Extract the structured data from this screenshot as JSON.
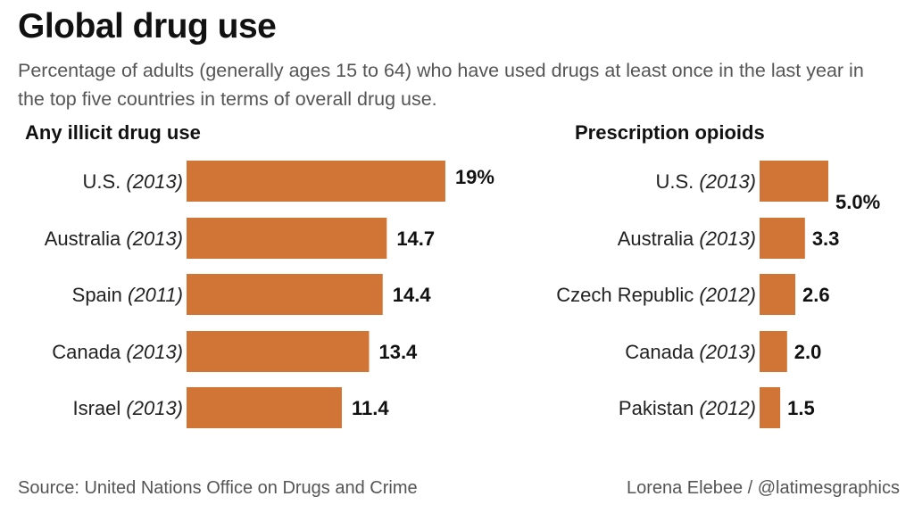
{
  "title": "Global drug use",
  "subtitle": "Percentage of adults (generally ages 15 to 64) who have used drugs at least once in the last year in the top five countries in terms of overall drug use.",
  "source": "Source: United Nations Office on Drugs and Crime",
  "credit": "Lorena Elebee / @latimesgraphics",
  "colors": {
    "bar": "#d07535",
    "label": "#222222",
    "value": "#111111"
  },
  "chart_data": [
    {
      "type": "bar",
      "orientation": "horizontal",
      "title": "Any illicit drug use",
      "unit": "%",
      "categories": [
        "U.S.",
        "Australia",
        "Spain",
        "Canada",
        "Israel"
      ],
      "years": [
        "(2013)",
        "(2013)",
        "(2011)",
        "(2013)",
        "(2013)"
      ],
      "values": [
        19,
        14.7,
        14.4,
        13.4,
        11.4
      ],
      "value_labels": [
        "19%",
        "14.7",
        "14.4",
        "13.4",
        "11.4"
      ],
      "axis": "none",
      "grid": false
    },
    {
      "type": "bar",
      "orientation": "horizontal",
      "title": "Prescription opioids",
      "unit": "%",
      "categories": [
        "U.S.",
        "Australia",
        "Czech Republic",
        "Canada",
        "Pakistan"
      ],
      "years": [
        "(2013)",
        "(2013)",
        "(2012)",
        "(2013)",
        "(2012)"
      ],
      "values": [
        5.0,
        3.3,
        2.6,
        2.0,
        1.5
      ],
      "value_labels": [
        "5.0%",
        "3.3",
        "2.6",
        "2.0",
        "1.5"
      ],
      "axis": "none",
      "grid": false
    }
  ]
}
